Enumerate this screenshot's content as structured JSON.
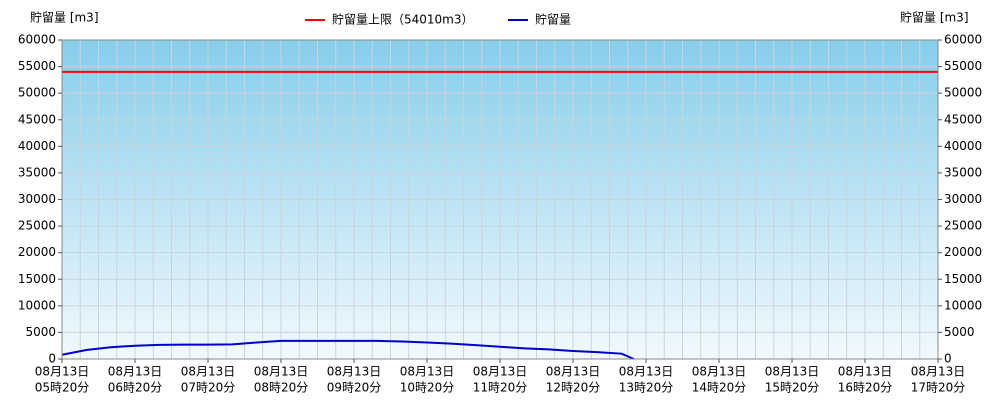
{
  "chart_data": {
    "type": "line",
    "y_label": "貯留量 [m3]",
    "limit": {
      "name": "貯留量上限（54010m3）",
      "value": 54010,
      "color": "#ff0000"
    },
    "series": [
      {
        "name": "貯留量",
        "color": "#0000cc",
        "x": [
          "05時20分",
          "05時40分",
          "06時00分",
          "06時20分",
          "06時40分",
          "07時00分",
          "07時20分",
          "07時40分",
          "08時00分",
          "08時20分",
          "08時40分",
          "09時00分",
          "09時20分",
          "09時40分",
          "10時00分",
          "10時20分",
          "10時40分",
          "11時00分",
          "11時20分",
          "11時40分",
          "12時00分",
          "12時20分",
          "12時40分",
          "13時00分",
          "13時10分"
        ],
        "values": [
          800,
          1700,
          2200,
          2500,
          2650,
          2700,
          2700,
          2750,
          3100,
          3400,
          3400,
          3400,
          3400,
          3400,
          3300,
          3100,
          2900,
          2600,
          2300,
          2000,
          1800,
          1500,
          1300,
          1000,
          0
        ]
      }
    ],
    "xticks": [
      {
        "date": "08月13日",
        "time": "05時20分"
      },
      {
        "date": "08月13日",
        "time": "06時20分"
      },
      {
        "date": "08月13日",
        "time": "07時20分"
      },
      {
        "date": "08月13日",
        "time": "08時20分"
      },
      {
        "date": "08月13日",
        "time": "09時20分"
      },
      {
        "date": "08月13日",
        "time": "10時20分"
      },
      {
        "date": "08月13日",
        "time": "11時20分"
      },
      {
        "date": "08月13日",
        "time": "12時20分"
      },
      {
        "date": "08月13日",
        "time": "13時20分"
      },
      {
        "date": "08月13日",
        "time": "14時20分"
      },
      {
        "date": "08月13日",
        "time": "15時20分"
      },
      {
        "date": "08月13日",
        "time": "16時20分"
      },
      {
        "date": "08月13日",
        "time": "17時20分"
      }
    ],
    "ylim": [
      0,
      60000
    ],
    "yticks": [
      0,
      5000,
      10000,
      15000,
      20000,
      25000,
      30000,
      35000,
      40000,
      45000,
      50000,
      55000,
      60000
    ],
    "grid": true
  }
}
